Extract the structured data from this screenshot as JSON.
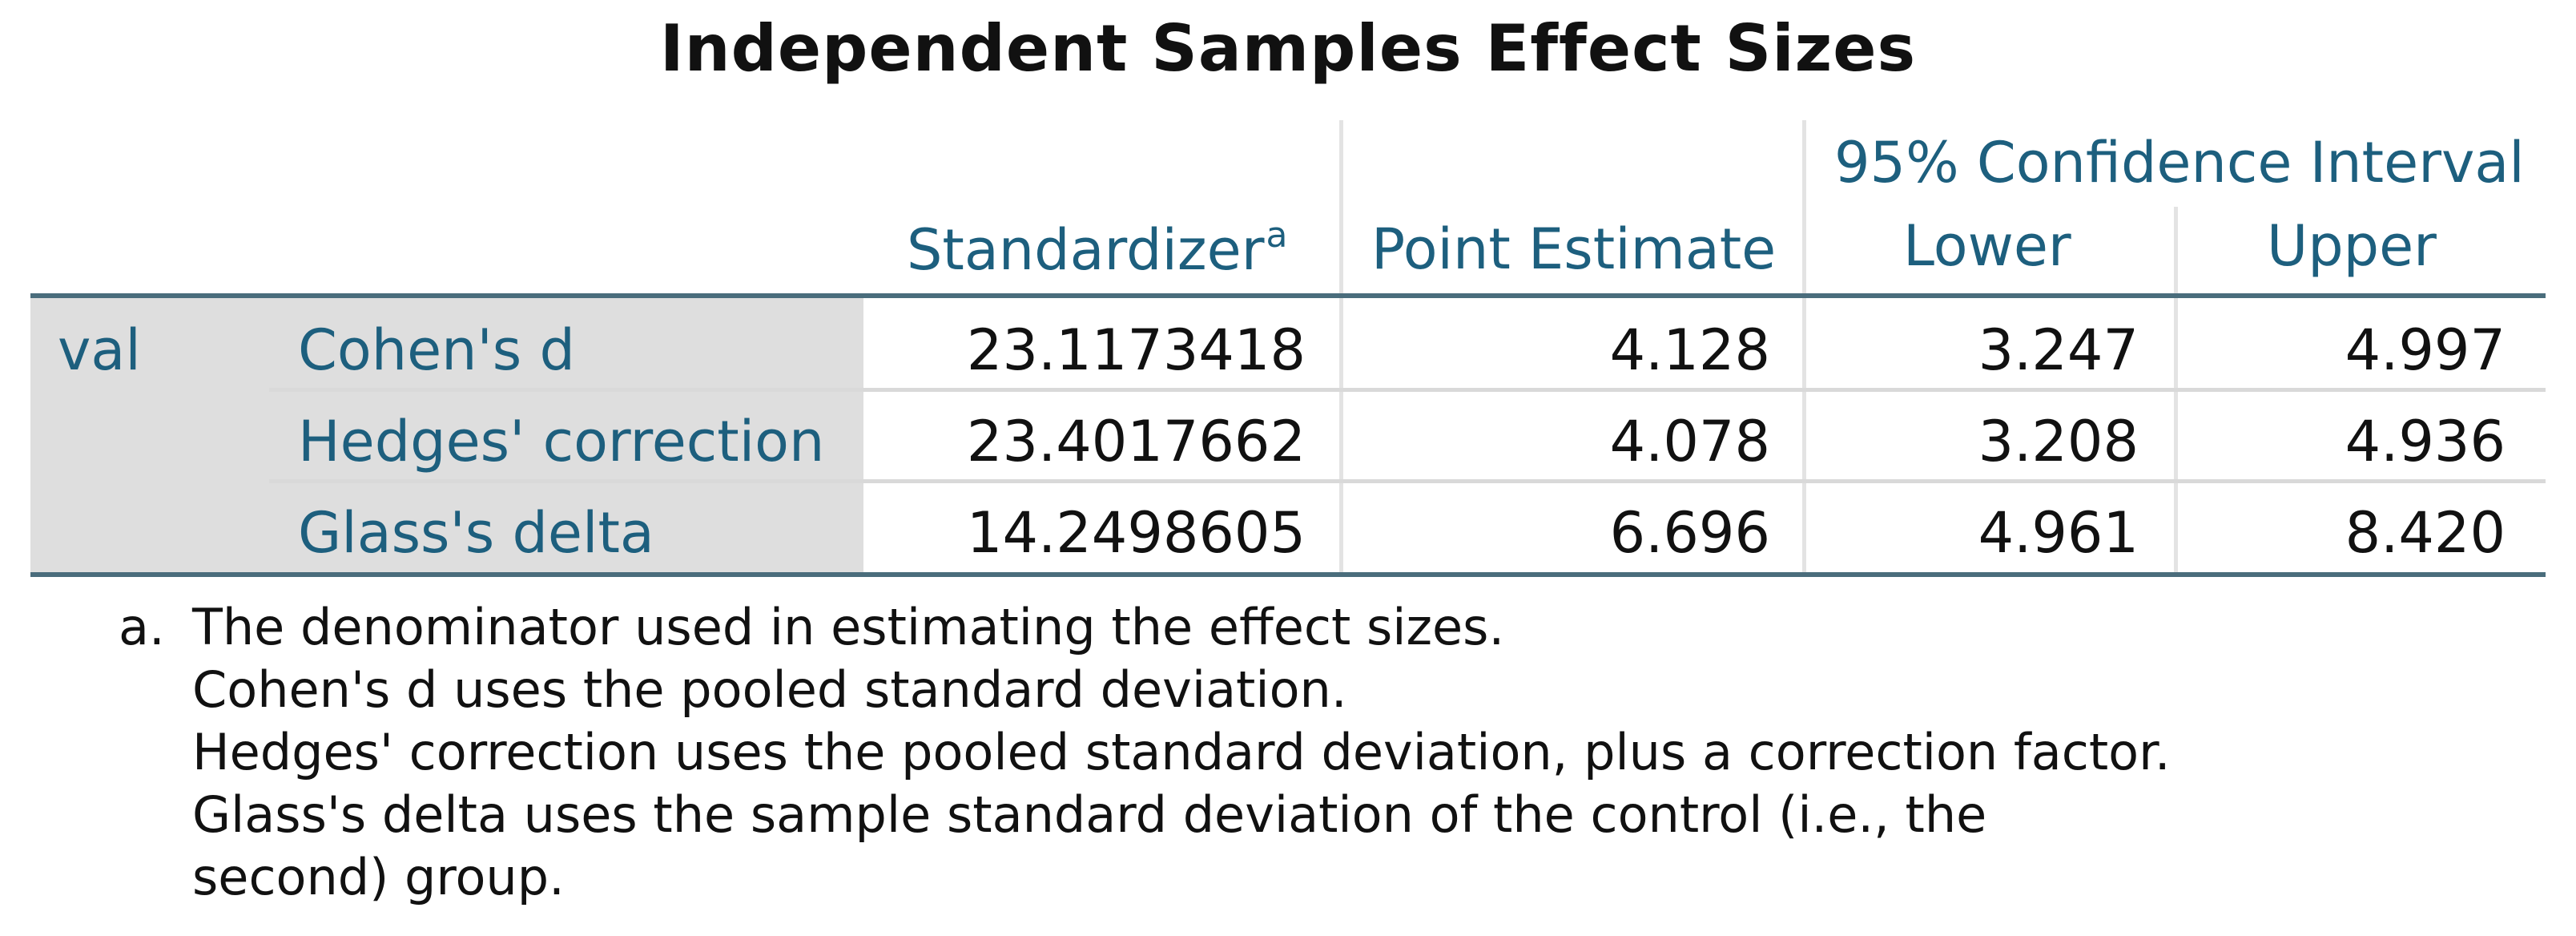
{
  "title": "Independent Samples Effect Sizes",
  "headers": {
    "standardizer": "Standardizer",
    "standardizer_note": "a",
    "point_estimate": "Point Estimate",
    "ci_group": "95% Confidence Interval",
    "lower": "Lower",
    "upper": "Upper"
  },
  "variable": "val",
  "rows": [
    {
      "label": "Cohen's d",
      "standardizer": "23.1173418",
      "point_estimate": "4.128",
      "lower": "3.247",
      "upper": "4.997"
    },
    {
      "label": "Hedges' correction",
      "standardizer": "23.4017662",
      "point_estimate": "4.078",
      "lower": "3.208",
      "upper": "4.936"
    },
    {
      "label": "Glass's delta",
      "standardizer": "14.2498605",
      "point_estimate": "6.696",
      "lower": "4.961",
      "upper": "8.420"
    }
  ],
  "footnote": {
    "marker": "a.",
    "lines": [
      "The denominator used in estimating the effect sizes.",
      "Cohen's d uses the pooled standard deviation.",
      "Hedges' correction uses the pooled standard deviation, plus a correction factor.",
      "Glass's delta uses the sample standard deviation of the control (i.e., the",
      "second) group."
    ]
  }
}
